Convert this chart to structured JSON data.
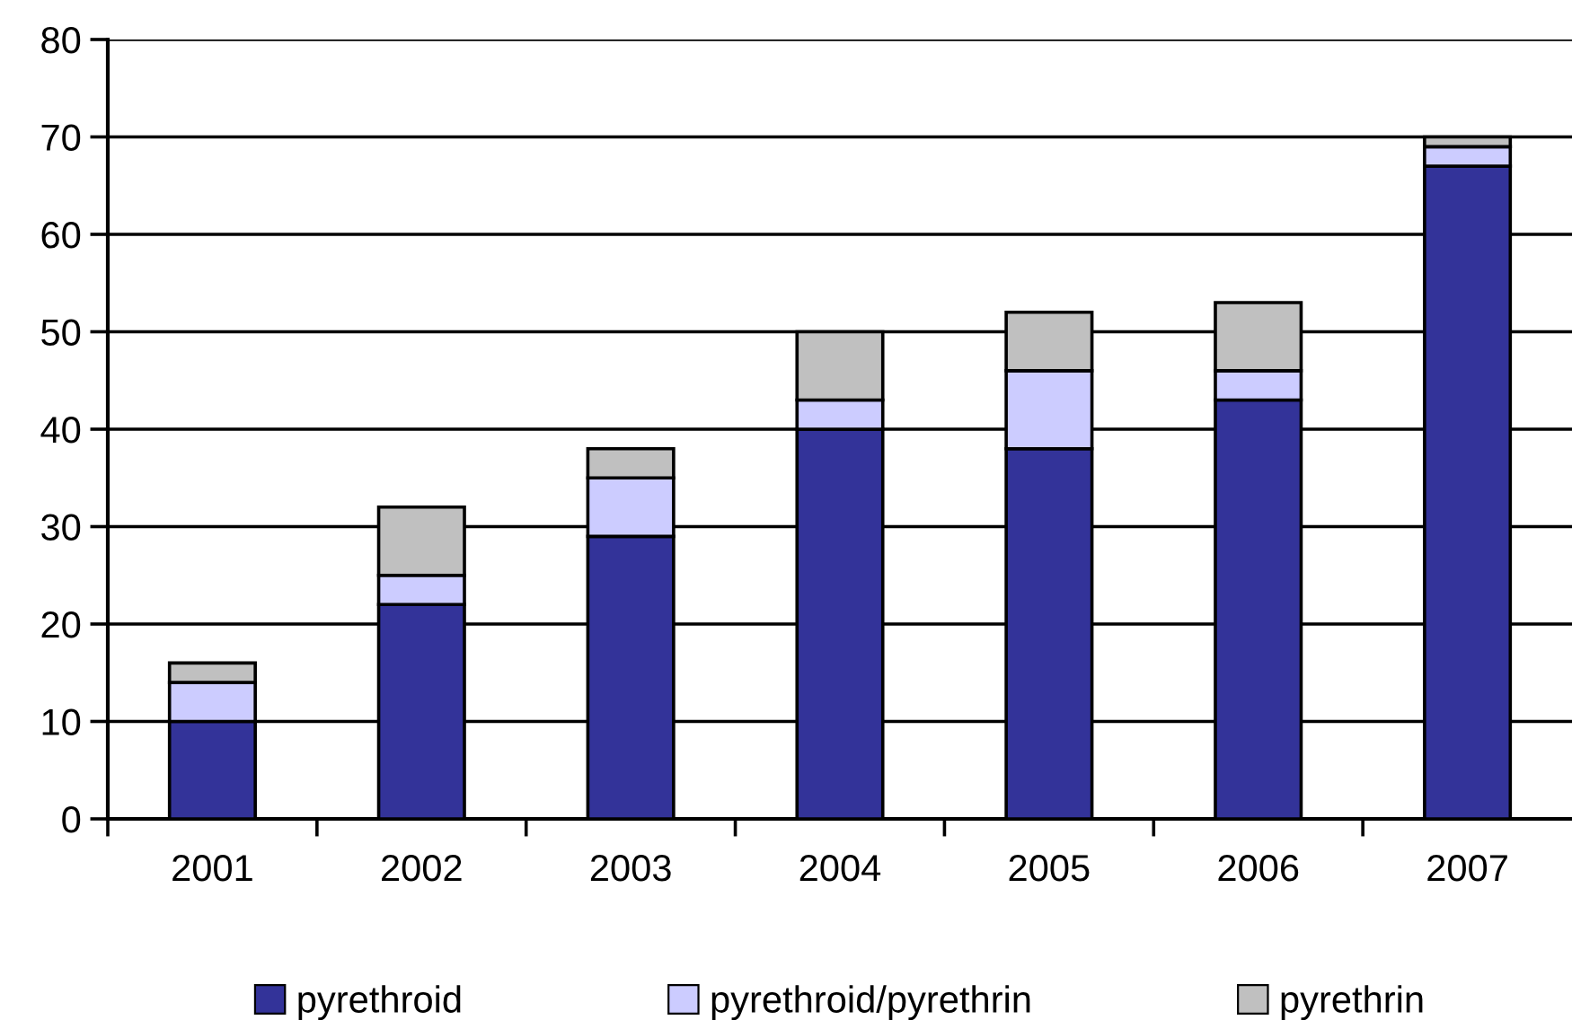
{
  "chart_data": {
    "type": "bar",
    "stacked": true,
    "categories": [
      "2001",
      "2002",
      "2003",
      "2004",
      "2005",
      "2006",
      "2007"
    ],
    "series": [
      {
        "name": "pyrethroid",
        "color": "#333399",
        "values": [
          10,
          22,
          29,
          40,
          38,
          43,
          67
        ]
      },
      {
        "name": "pyrethroid/pyrethrin",
        "color": "#ccccff",
        "values": [
          4,
          3,
          6,
          3,
          8,
          3,
          2
        ]
      },
      {
        "name": "pyrethrin",
        "color": "#c0c0c0",
        "values": [
          2,
          7,
          3,
          7,
          6,
          7,
          1
        ]
      }
    ],
    "ylim": [
      0,
      80
    ],
    "yticks": [
      0,
      10,
      20,
      30,
      40,
      50,
      60,
      70,
      80
    ],
    "grid": "y",
    "legend": "bottom"
  }
}
